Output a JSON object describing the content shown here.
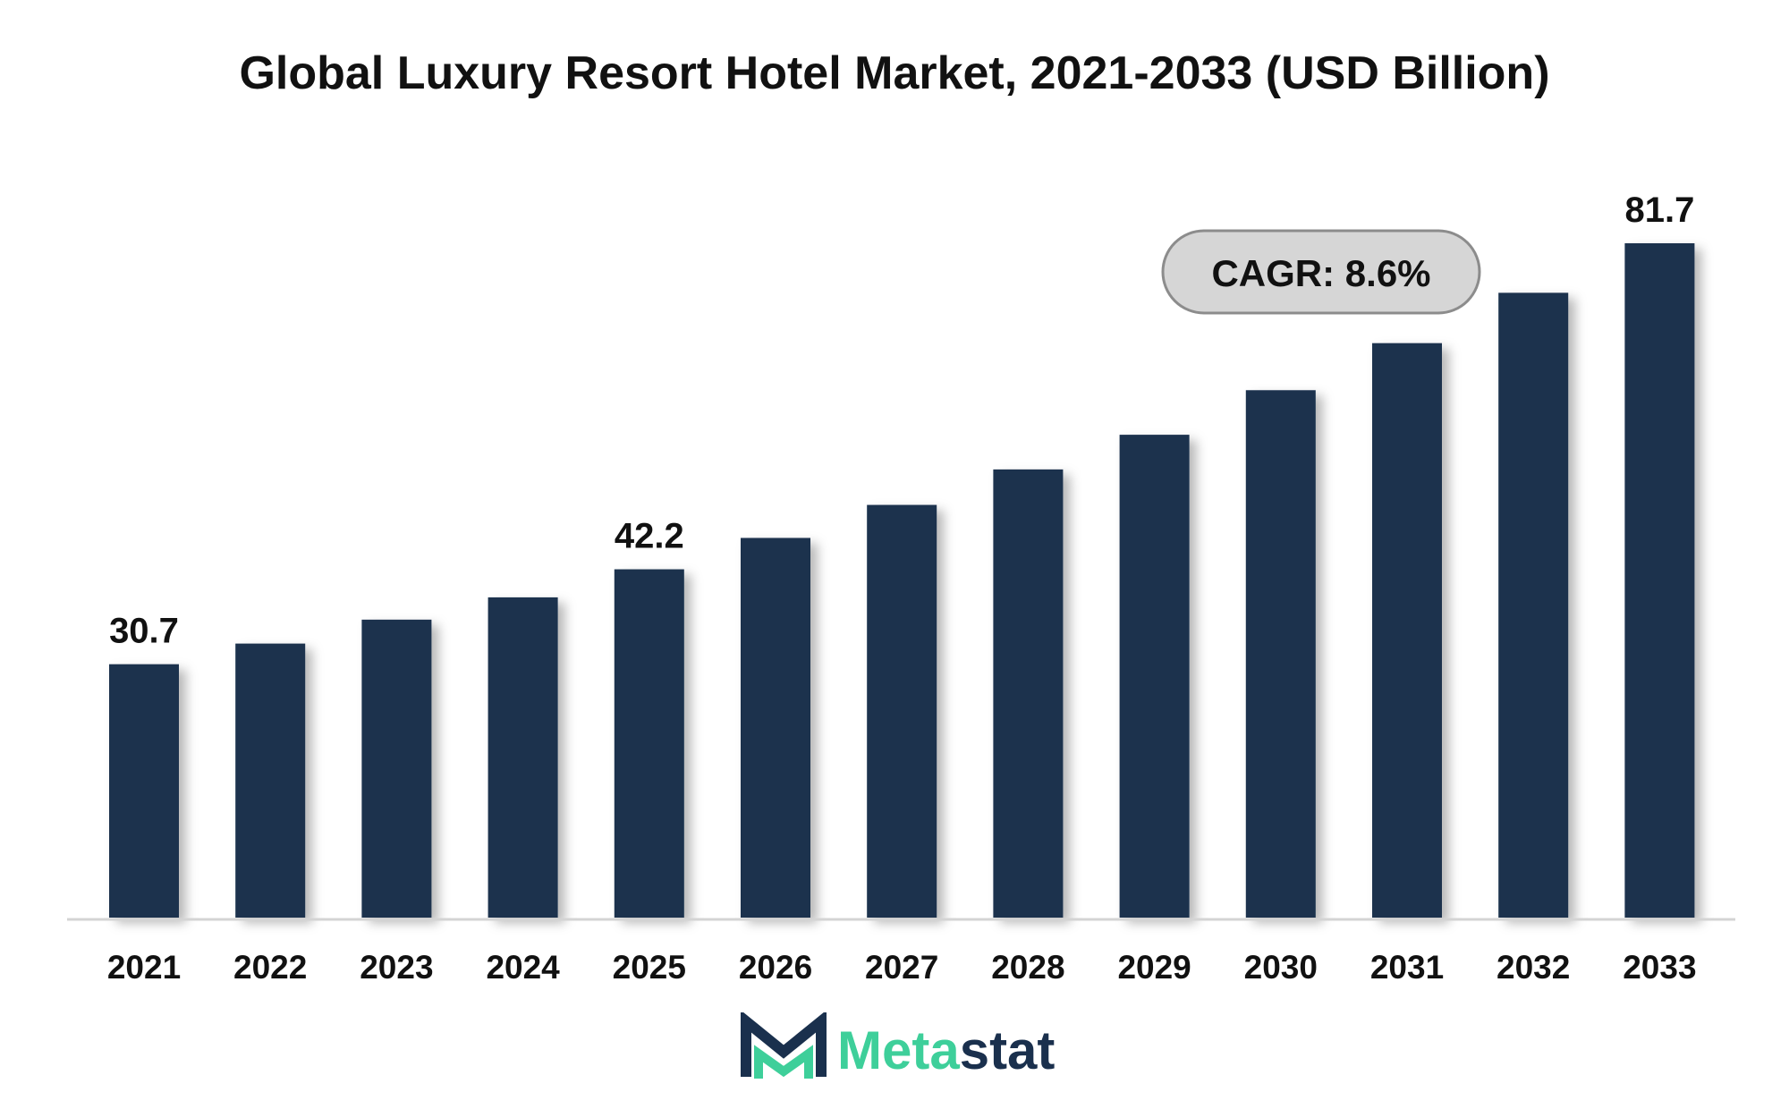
{
  "chart_data": {
    "type": "bar",
    "title": "Global Luxury Resort Hotel Market, 2021-2033 (USD Billion)",
    "categories": [
      "2021",
      "2022",
      "2023",
      "2024",
      "2025",
      "2026",
      "2027",
      "2028",
      "2029",
      "2030",
      "2031",
      "2032",
      "2033"
    ],
    "values": [
      30.7,
      33.2,
      36.1,
      38.8,
      42.2,
      46.0,
      50.0,
      54.3,
      58.5,
      63.9,
      69.6,
      75.7,
      81.7
    ],
    "data_labels": [
      {
        "category": "2021",
        "text": "30.7"
      },
      {
        "category": "2025",
        "text": "42.2"
      },
      {
        "category": "2033",
        "text": "81.7"
      }
    ],
    "ylim": [
      0,
      81.7
    ],
    "grid": false,
    "bar_color": "#1a304d",
    "annotation": {
      "text": "CAGR: 8.6%"
    }
  },
  "branding": {
    "name_prefix": "Meta",
    "name_suffix": "stat",
    "prefix_color": "#3ecf9a",
    "suffix_color": "#1a304d"
  }
}
